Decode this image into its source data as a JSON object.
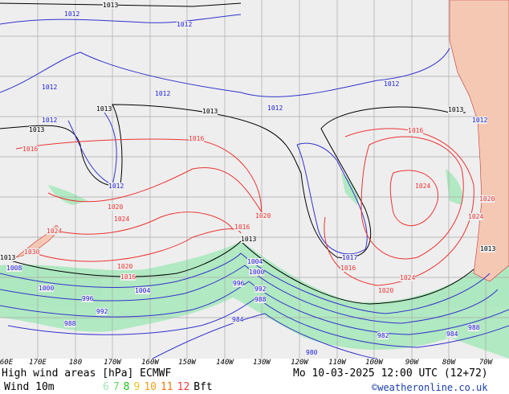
{
  "map": {
    "title": "High wind areas [hPa] ECMWF",
    "valid": "Mo 10-03-2025 12:00 UTC (12+72)",
    "legend_label": "Wind 10m",
    "bft_scale": [
      {
        "v": "6",
        "color": "#a0e6b4"
      },
      {
        "v": "7",
        "color": "#6ad86a"
      },
      {
        "v": "8",
        "color": "#18c418"
      },
      {
        "v": "9",
        "color": "#e6c81e"
      },
      {
        "v": "10",
        "color": "#f0a01e"
      },
      {
        "v": "11",
        "color": "#f07814"
      },
      {
        "v": "12",
        "color": "#f03c3c"
      }
    ],
    "bft_unit": "Bft",
    "credit": "©weatheronline.co.uk",
    "longitudes": [
      "60E",
      "170E",
      "180",
      "170W",
      "160W",
      "150W",
      "140W",
      "130W",
      "120W",
      "110W",
      "100W",
      "90W",
      "80W",
      "70W"
    ],
    "isobar_labels": [
      {
        "t": "1013",
        "c": "black"
      },
      {
        "t": "1012",
        "c": "blue"
      },
      {
        "t": "1012",
        "c": "blue"
      },
      {
        "t": "1012",
        "c": "blue"
      },
      {
        "t": "1012",
        "c": "blue"
      },
      {
        "t": "1012",
        "c": "blue"
      },
      {
        "t": "1013",
        "c": "black"
      },
      {
        "t": "1013",
        "c": "black"
      },
      {
        "t": "1012",
        "c": "blue"
      },
      {
        "t": "1012",
        "c": "blue"
      },
      {
        "t": "1013",
        "c": "black"
      },
      {
        "t": "1016",
        "c": "red"
      },
      {
        "t": "1016",
        "c": "red"
      },
      {
        "t": "1016",
        "c": "red"
      },
      {
        "t": "1012",
        "c": "blue"
      },
      {
        "t": "1020",
        "c": "red"
      },
      {
        "t": "1024",
        "c": "red"
      },
      {
        "t": "1024",
        "c": "red"
      },
      {
        "t": "1020",
        "c": "red"
      },
      {
        "t": "1024",
        "c": "red"
      },
      {
        "t": "1016",
        "c": "red"
      },
      {
        "t": "1013",
        "c": "black"
      },
      {
        "t": "1020",
        "c": "red"
      },
      {
        "t": "1016",
        "c": "red"
      },
      {
        "t": "1004",
        "c": "blue"
      },
      {
        "t": "1000",
        "c": "blue"
      },
      {
        "t": "996",
        "c": "blue"
      },
      {
        "t": "992",
        "c": "blue"
      },
      {
        "t": "988",
        "c": "blue"
      },
      {
        "t": "984",
        "c": "blue"
      },
      {
        "t": "1017",
        "c": "blue"
      },
      {
        "t": "1016",
        "c": "red"
      },
      {
        "t": "1020",
        "c": "red"
      },
      {
        "t": "1024",
        "c": "red"
      },
      {
        "t": "1008",
        "c": "blue"
      },
      {
        "t": "1000",
        "c": "blue"
      },
      {
        "t": "1004",
        "c": "blue"
      },
      {
        "t": "996",
        "c": "blue"
      },
      {
        "t": "992",
        "c": "blue"
      },
      {
        "t": "988",
        "c": "blue"
      },
      {
        "t": "982",
        "c": "blue"
      },
      {
        "t": "984",
        "c": "blue"
      },
      {
        "t": "988",
        "c": "blue"
      },
      {
        "t": "980",
        "c": "blue"
      },
      {
        "t": "1013",
        "c": "black"
      },
      {
        "t": "1012",
        "c": "blue"
      },
      {
        "t": "1030",
        "c": "red"
      },
      {
        "t": "1013",
        "c": "black"
      },
      {
        "t": "1013",
        "c": "black"
      },
      {
        "t": "1020",
        "c": "red"
      },
      {
        "t": "1024",
        "c": "red"
      }
    ]
  }
}
